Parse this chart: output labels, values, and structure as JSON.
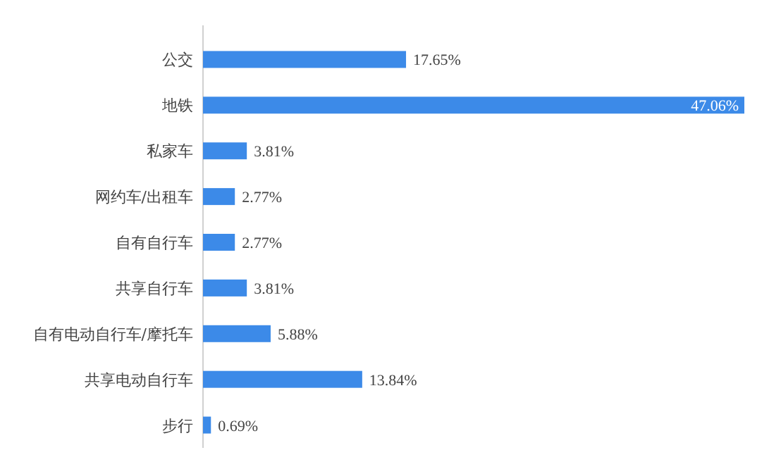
{
  "chart_data": {
    "type": "bar",
    "orientation": "horizontal",
    "categories": [
      "公交",
      "地铁",
      "私家车",
      "网约车/出租车",
      "自有自行车",
      "共享自行车",
      "自有电动自行车/摩托车",
      "共享电动自行车",
      "步行"
    ],
    "values": [
      17.65,
      47.06,
      3.81,
      2.77,
      2.77,
      3.81,
      5.88,
      13.84,
      0.69
    ],
    "value_labels": [
      "17.65%",
      "47.06%",
      "3.81%",
      "2.77%",
      "2.77%",
      "3.81%",
      "5.88%",
      "13.84%",
      "0.69%"
    ],
    "color": "#3c8ae8",
    "xlim": [
      0,
      47.06
    ]
  }
}
